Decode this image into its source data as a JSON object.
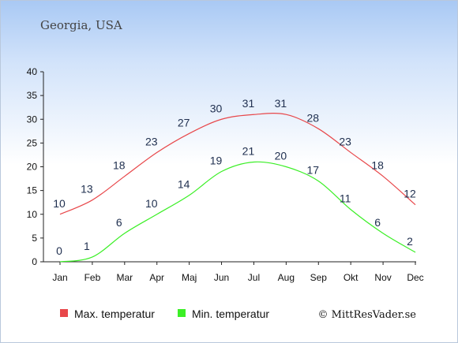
{
  "title": "Georgia, USA",
  "credit": "© MittResVader.se",
  "colors": {
    "max": "#e8474a",
    "min": "#3bef26"
  },
  "chart_data": {
    "type": "line",
    "categories": [
      "Jan",
      "Feb",
      "Mar",
      "Apr",
      "Maj",
      "Jun",
      "Jul",
      "Aug",
      "Sep",
      "Okt",
      "Nov",
      "Dec"
    ],
    "series": [
      {
        "name": "Max. temperatur",
        "values": [
          10,
          13,
          18,
          23,
          27,
          30,
          31,
          31,
          28,
          23,
          18,
          12
        ]
      },
      {
        "name": "Min. temperatur",
        "values": [
          0,
          1,
          6,
          10,
          14,
          19,
          21,
          20,
          17,
          11,
          6,
          2
        ]
      }
    ],
    "ylim": [
      0,
      40
    ],
    "yticks": [
      0,
      5,
      10,
      15,
      20,
      25,
      30,
      35,
      40
    ],
    "grid": false,
    "legend": "bottom"
  }
}
